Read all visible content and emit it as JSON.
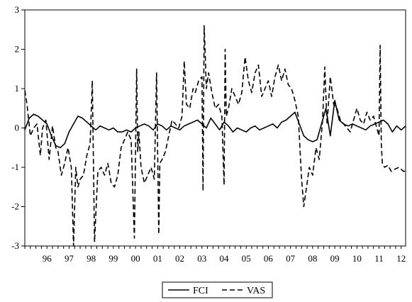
{
  "chart_data": {
    "type": "line",
    "title": "",
    "xlabel": "",
    "ylabel": "",
    "xlim": [
      1995.5,
      2012.7
    ],
    "ylim": [
      -3,
      3
    ],
    "y_ticks": [
      -3,
      -2,
      -1,
      0,
      1,
      2,
      3
    ],
    "x_tick_labels": [
      {
        "label": "96",
        "x": 1996.0
      },
      {
        "label": "97",
        "x": 1997.0
      },
      {
        "label": "98",
        "x": 1998.0
      },
      {
        "label": "99",
        "x": 1999.0
      },
      {
        "label": "00",
        "x": 2000.0
      },
      {
        "label": "01",
        "x": 2001.0
      },
      {
        "label": "02",
        "x": 2002.0
      },
      {
        "label": "03",
        "x": 2003.0
      },
      {
        "label": "04",
        "x": 2004.0
      },
      {
        "label": "05",
        "x": 2005.0
      },
      {
        "label": "06",
        "x": 2006.0
      },
      {
        "label": "07",
        "x": 2007.0
      },
      {
        "label": "08",
        "x": 2008.0
      },
      {
        "label": "09",
        "x": 2009.0
      },
      {
        "label": "10",
        "x": 2010.0
      },
      {
        "label": "11",
        "x": 2011.0
      },
      {
        "label": "12",
        "x": 2012.0
      }
    ],
    "minor_ticks_per_year": 4,
    "grid": false,
    "legend_position": "bottom-center",
    "series": [
      {
        "name": "FCI",
        "style": "solid",
        "color": "#000000",
        "x": [
          1995.5,
          1995.7,
          1995.9,
          1996.1,
          1996.3,
          1996.5,
          1996.7,
          1996.9,
          1997.1,
          1997.3,
          1997.5,
          1997.7,
          1997.9,
          1998.1,
          1998.3,
          1998.5,
          1998.7,
          1998.9,
          1999.1,
          1999.3,
          1999.5,
          1999.7,
          1999.9,
          2000.1,
          2000.3,
          2000.5,
          2000.7,
          2000.9,
          2001.1,
          2001.3,
          2001.5,
          2001.7,
          2001.9,
          2002.1,
          2002.3,
          2002.5,
          2002.7,
          2002.9,
          2003.1,
          2003.3,
          2003.5,
          2003.7,
          2003.9,
          2004.1,
          2004.3,
          2004.5,
          2004.7,
          2004.9,
          2005.1,
          2005.3,
          2005.5,
          2005.7,
          2005.9,
          2006.1,
          2006.3,
          2006.5,
          2006.7,
          2006.9,
          2007.1,
          2007.3,
          2007.5,
          2007.7,
          2007.9,
          2008.1,
          2008.3,
          2008.5,
          2008.7,
          2008.9,
          2009.1,
          2009.3,
          2009.5,
          2009.7,
          2009.9,
          2010.1,
          2010.3,
          2010.5,
          2010.7,
          2010.9,
          2011.1,
          2011.3,
          2011.5,
          2011.7,
          2011.9,
          2012.1,
          2012.3,
          2012.5,
          2012.7
        ],
        "values": [
          -0.05,
          0.25,
          0.35,
          0.3,
          0.2,
          0.1,
          -0.2,
          -0.45,
          -0.5,
          -0.4,
          -0.1,
          0.1,
          0.3,
          0.25,
          0.15,
          0.05,
          -0.05,
          0.05,
          0.0,
          -0.05,
          0.0,
          -0.1,
          -0.1,
          -0.05,
          -0.1,
          0.0,
          0.05,
          0.1,
          0.05,
          -0.05,
          0.1,
          0.05,
          -0.05,
          0.05,
          0.0,
          -0.05,
          0.05,
          0.1,
          0.15,
          0.2,
          0.1,
          0.0,
          0.25,
          0.1,
          -0.05,
          0.15,
          0.05,
          -0.1,
          0.0,
          -0.05,
          -0.1,
          0.0,
          0.05,
          -0.05,
          0.0,
          0.05,
          0.1,
          0.0,
          0.15,
          0.2,
          0.3,
          0.4,
          0.1,
          -0.2,
          -0.3,
          -0.35,
          -0.3,
          0.1,
          0.5,
          -0.2,
          0.7,
          0.2,
          0.1,
          0.05,
          0.1,
          0.05,
          0.0,
          -0.05,
          0.05,
          0.1,
          0.15,
          0.2,
          0.1,
          -0.1,
          0.05,
          -0.05,
          0.05
        ]
      },
      {
        "name": "VAS",
        "style": "dashed",
        "color": "#000000",
        "x": [
          1995.5,
          1995.6,
          1995.75,
          1995.9,
          1996.05,
          1996.2,
          1996.3,
          1996.45,
          1996.6,
          1996.75,
          1996.9,
          1997.0,
          1997.15,
          1997.3,
          1997.45,
          1997.6,
          1997.7,
          1997.8,
          1997.9,
          1998.0,
          1998.15,
          1998.3,
          1998.45,
          1998.55,
          1998.65,
          1998.8,
          1998.95,
          1999.1,
          1999.25,
          1999.4,
          1999.55,
          1999.7,
          1999.85,
          2000.0,
          2000.15,
          2000.3,
          2000.45,
          2000.55,
          2000.6,
          2000.65,
          2000.75,
          2000.9,
          2001.05,
          2001.2,
          2001.35,
          2001.45,
          2001.55,
          2001.6,
          2001.7,
          2001.85,
          2002.0,
          2002.15,
          2002.3,
          2002.45,
          2002.6,
          2002.7,
          2002.8,
          2002.95,
          2003.1,
          2003.2,
          2003.35,
          2003.5,
          2003.55,
          2003.6,
          2003.65,
          2003.7,
          2003.8,
          2003.95,
          2004.1,
          2004.25,
          2004.4,
          2004.5,
          2004.55,
          2004.6,
          2004.7,
          2004.85,
          2005.0,
          2005.15,
          2005.3,
          2005.45,
          2005.6,
          2005.75,
          2005.9,
          2006.05,
          2006.2,
          2006.35,
          2006.5,
          2006.65,
          2006.8,
          2006.95,
          2007.1,
          2007.25,
          2007.4,
          2007.55,
          2007.7,
          2007.85,
          2008.0,
          2008.1,
          2008.2,
          2008.35,
          2008.5,
          2008.65,
          2008.8,
          2008.95,
          2009.05,
          2009.15,
          2009.3,
          2009.45,
          2009.6,
          2009.75,
          2009.9,
          2010.05,
          2010.2,
          2010.35,
          2010.5,
          2010.65,
          2010.8,
          2010.95,
          2011.1,
          2011.25,
          2011.4,
          2011.5,
          2011.55,
          2011.6,
          2011.65,
          2011.75,
          2011.9,
          2012.05,
          2012.2,
          2012.4,
          2012.6,
          2012.7
        ],
        "values": [
          0.95,
          0.6,
          -0.2,
          0.0,
          0.1,
          -0.7,
          0.0,
          0.2,
          -0.8,
          0.05,
          -0.5,
          -0.6,
          -1.2,
          -0.9,
          -0.5,
          -1.0,
          -3.0,
          -1.0,
          -1.5,
          -1.3,
          -1.2,
          -0.7,
          -0.4,
          1.2,
          -2.9,
          -1.1,
          -1.0,
          -1.2,
          -0.9,
          -1.4,
          -1.5,
          -1.2,
          -0.5,
          -0.3,
          -0.1,
          -0.3,
          -2.8,
          1.5,
          -0.6,
          -0.1,
          -1.0,
          -1.4,
          -1.2,
          -1.0,
          -1.3,
          1.4,
          -2.7,
          -0.9,
          -0.8,
          -0.6,
          -0.2,
          0.2,
          0.1,
          0.0,
          0.3,
          1.7,
          0.6,
          0.5,
          1.0,
          0.9,
          1.2,
          1.3,
          -1.6,
          2.6,
          1.8,
          1.0,
          1.4,
          0.9,
          0.5,
          0.6,
          0.3,
          -1.45,
          2.0,
          0.3,
          0.5,
          1.0,
          0.8,
          0.6,
          0.9,
          1.8,
          1.2,
          0.9,
          1.4,
          1.6,
          0.8,
          1.0,
          1.2,
          0.8,
          1.3,
          1.6,
          1.2,
          1.5,
          1.1,
          1.0,
          0.7,
          0.3,
          -1.3,
          -2.0,
          -1.6,
          -1.0,
          -1.2,
          -0.5,
          -0.8,
          0.2,
          1.55,
          0.1,
          1.3,
          0.6,
          0.5,
          0.2,
          0.1,
          0.0,
          -0.1,
          0.2,
          0.5,
          0.2,
          0.1,
          0.4,
          0.2,
          0.3,
          0.0,
          -0.2,
          2.1,
          -0.4,
          -0.9,
          -1.0,
          -0.95,
          -1.1,
          -1.05,
          -1.0,
          -1.1,
          -1.1
        ]
      }
    ]
  }
}
